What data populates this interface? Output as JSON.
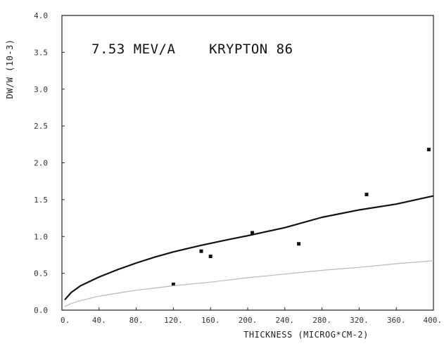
{
  "chart_data": {
    "type": "scatter",
    "title": "7.53 MEV/A    KRYPTON 86",
    "xlabel": "THICKNESS (MICROG*CM-2)",
    "ylabel": "DW/W (10-3)",
    "xlim": [
      0,
      400
    ],
    "ylim": [
      0,
      4.0
    ],
    "x_tick_labels": [
      "0.",
      "40.",
      "80.",
      "120.",
      "160.",
      "200.",
      "240.",
      "280.",
      "320.",
      "360.",
      "400."
    ],
    "y_tick_labels": [
      "0.0",
      "0.5",
      "1.0",
      "1.5",
      "2.0",
      "2.5",
      "3.0",
      "3.5",
      "4.0"
    ],
    "series": [
      {
        "mode": "markers",
        "color": "#111111",
        "x": [
          120,
          150,
          160,
          205,
          255,
          328,
          395
        ],
        "y": [
          0.35,
          0.8,
          0.73,
          1.05,
          0.9,
          1.57,
          2.18
        ]
      },
      {
        "mode": "line",
        "color": "#111111",
        "x": [
          3,
          10,
          20,
          30,
          40,
          60,
          80,
          100,
          120,
          150,
          180,
          200,
          240,
          280,
          320,
          360,
          400
        ],
        "y": [
          0.14,
          0.24,
          0.33,
          0.39,
          0.45,
          0.55,
          0.64,
          0.72,
          0.79,
          0.88,
          0.96,
          1.01,
          1.12,
          1.26,
          1.36,
          1.44,
          1.55
        ]
      },
      {
        "mode": "line",
        "color": "#b8b8b8",
        "x": [
          3,
          10,
          20,
          40,
          60,
          80,
          100,
          120,
          160,
          200,
          240,
          280,
          320,
          360,
          400
        ],
        "y": [
          0.05,
          0.09,
          0.13,
          0.19,
          0.23,
          0.27,
          0.3,
          0.33,
          0.38,
          0.44,
          0.49,
          0.54,
          0.58,
          0.63,
          0.67
        ]
      }
    ],
    "grid": false
  }
}
